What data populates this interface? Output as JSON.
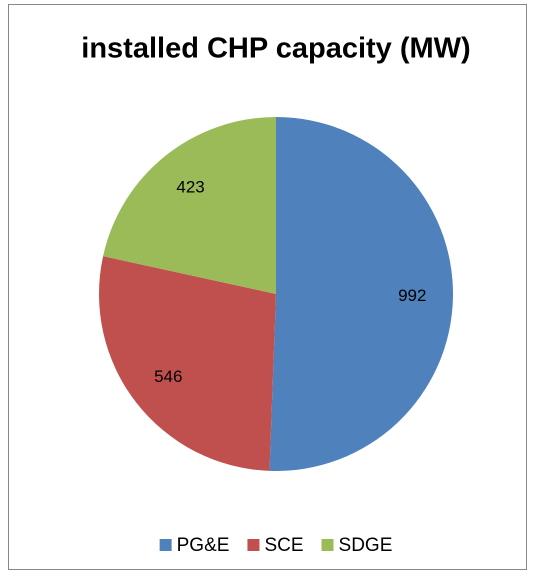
{
  "chart_data": {
    "type": "pie",
    "title": "installed CHP capacity (MW)",
    "categories": [
      "PG&E",
      "SCE",
      "SDGE"
    ],
    "values": [
      992,
      546,
      423
    ],
    "colors": [
      "#4f81bd",
      "#c0504d",
      "#9bbb59"
    ],
    "legend": "bottom"
  }
}
